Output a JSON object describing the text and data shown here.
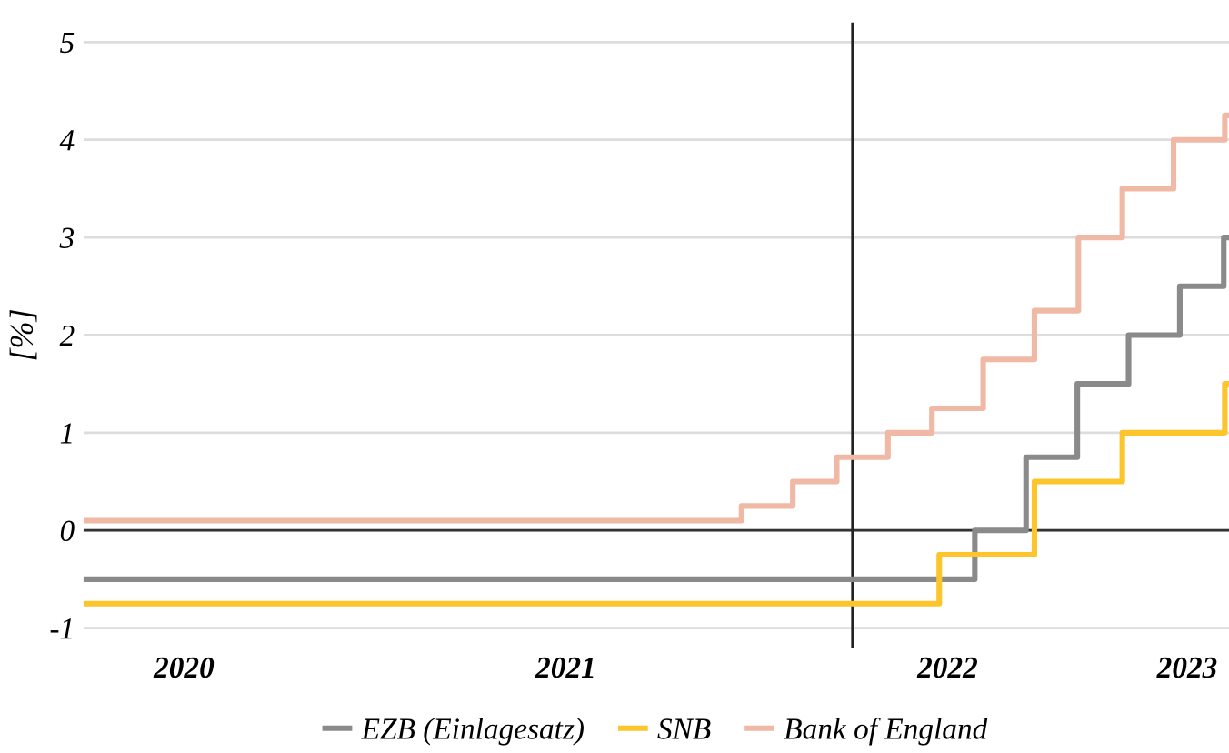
{
  "chart_data": {
    "type": "step",
    "ylabel": "[%]",
    "xlim": [
      "2020-03-27",
      "2023-03-27"
    ],
    "ylim": [
      -1.2,
      5.2
    ],
    "yticks": [
      -1,
      0,
      1,
      2,
      3,
      4,
      5
    ],
    "xticks": [
      {
        "value": "2020-07-01",
        "label": "2020"
      },
      {
        "value": "2021-07-01",
        "label": "2021"
      },
      {
        "value": "2022-07-01",
        "label": "2022"
      },
      {
        "value": "2023-02-15",
        "label": "2023"
      }
    ],
    "grid": "y",
    "legend": "bottom",
    "line_style": "solid",
    "marker": "none",
    "ref_lines": [
      {
        "axis": "y",
        "value": 0,
        "color": "#333333"
      },
      {
        "axis": "x",
        "value": "2022-04-01",
        "color": "#222222"
      }
    ],
    "series": [
      {
        "name": "EZB (Einlagesatz)",
        "color": "#8a8a8a",
        "x": [
          "2020-03-27",
          "2022-07-27",
          "2022-09-14",
          "2022-11-02",
          "2022-12-21",
          "2023-02-08",
          "2023-03-22",
          "2023-03-27"
        ],
        "values": [
          -0.5,
          0,
          0.75,
          1.5,
          2,
          2.5,
          3,
          3
        ]
      },
      {
        "name": "SNB",
        "color": "#fcc52c",
        "x": [
          "2020-03-27",
          "2022-06-23",
          "2022-09-22",
          "2022-12-15",
          "2023-03-23",
          "2023-03-27"
        ],
        "values": [
          -0.75,
          -0.25,
          0.5,
          1,
          1.5,
          1.5
        ]
      },
      {
        "name": "Bank of England",
        "color": "#f0b9a5",
        "x": [
          "2020-03-27",
          "2021-12-16",
          "2022-02-03",
          "2022-03-17",
          "2022-05-05",
          "2022-06-16",
          "2022-08-04",
          "2022-09-22",
          "2022-11-03",
          "2022-12-15",
          "2023-02-02",
          "2023-03-23",
          "2023-03-27"
        ],
        "values": [
          0.1,
          0.25,
          0.5,
          0.75,
          1,
          1.25,
          1.75,
          2.25,
          3,
          3.5,
          4,
          4.25,
          4.25
        ]
      }
    ]
  }
}
